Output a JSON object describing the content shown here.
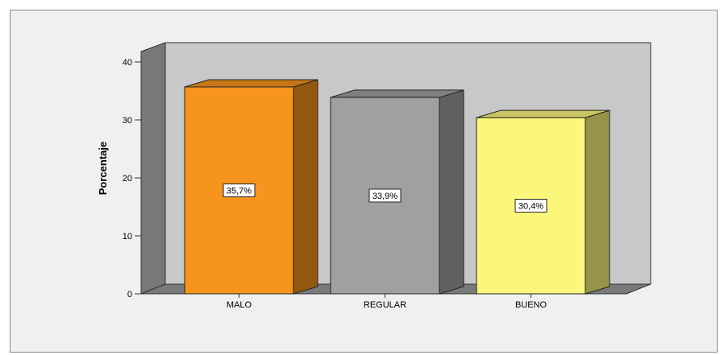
{
  "chart_data": {
    "type": "bar",
    "style": "3d",
    "categories": [
      "MALO",
      "REGULAR",
      "BUENO"
    ],
    "values": [
      35.7,
      33.9,
      30.4
    ],
    "data_labels": [
      "35,7%",
      "33,9%",
      "30,4%"
    ],
    "colors": [
      "#f7941d",
      "#a0a0a0",
      "#fbf77a"
    ],
    "xlabel": "",
    "ylabel": "Porcentaje",
    "ylim": [
      0,
      40
    ],
    "yticks": [
      0,
      10,
      20,
      30,
      40
    ],
    "grid": false,
    "legend": "none",
    "backwall_color": "#c8c8c8"
  }
}
